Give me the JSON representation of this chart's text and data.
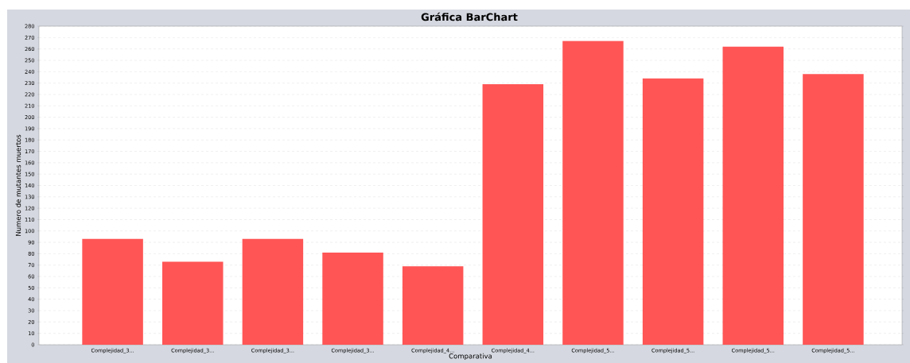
{
  "chart_data": {
    "type": "bar",
    "title": "Gráfica BarChart",
    "xlabel": "Comparativa",
    "ylabel": "Numero de mutantes muertos",
    "categories": [
      "Complejidad_3...",
      "Complejidad_3...",
      "Complejidad_3...",
      "Complejidad_3...",
      "Complejidad_4...",
      "Complejidad_4...",
      "Complejidad_5...",
      "Complejidad_5...",
      "Complejidad_5...",
      "Complejidad_5..."
    ],
    "values": [
      93,
      73,
      93,
      81,
      69,
      229,
      267,
      234,
      262,
      238
    ],
    "color": "#ff5555",
    "ylim": [
      0,
      280
    ],
    "yticks": [
      0,
      10,
      20,
      30,
      40,
      50,
      60,
      70,
      80,
      90,
      100,
      110,
      120,
      130,
      140,
      150,
      160,
      170,
      180,
      190,
      200,
      210,
      220,
      230,
      240,
      250,
      260,
      270,
      280
    ],
    "grid": "y"
  }
}
